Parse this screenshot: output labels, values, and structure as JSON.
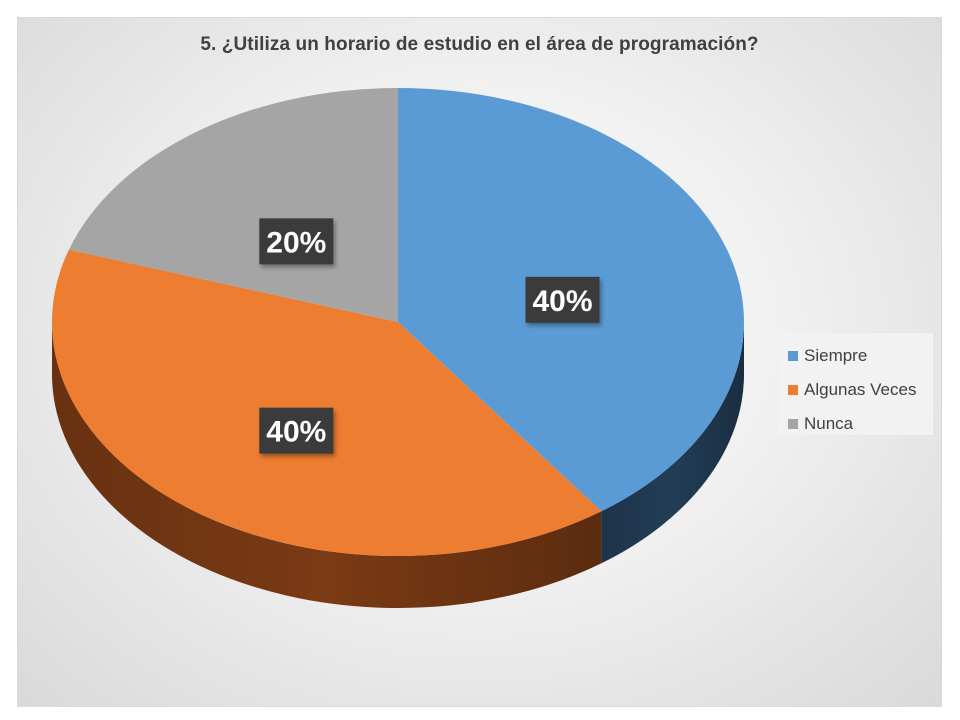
{
  "chart_data": {
    "type": "pie",
    "title": "5. ¿Utiliza un horario de estudio en el área de programación?",
    "slices": [
      {
        "label": "Siempre",
        "value": 40,
        "display": "40%",
        "color": "#5b9bd5",
        "side_color": "#223d57"
      },
      {
        "label": "Algunas Veces",
        "value": 40,
        "display": "40%",
        "color": "#ed7d31",
        "side_color": "#7a3a14"
      },
      {
        "label": "Nunca",
        "value": 20,
        "display": "20%",
        "color": "#a5a5a5",
        "side_color": "#5c5c5c"
      }
    ],
    "legend_position": "right",
    "start_angle": "top (12 o'clock), clockwise",
    "style": "3d"
  }
}
